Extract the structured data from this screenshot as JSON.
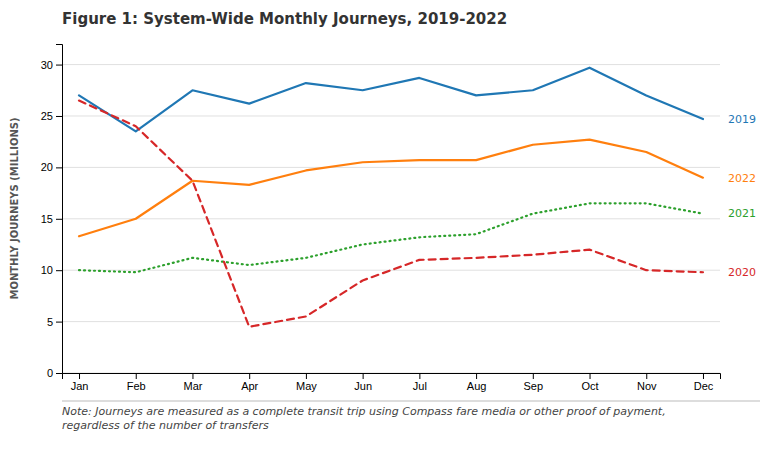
{
  "chart_data": {
    "type": "line",
    "title": "Figure 1: System-Wide Monthly Journeys, 2019-2022",
    "y_label": "MONTHLY JOURNEYS (MILLIONS)",
    "annotations": [
      "Note: Journeys are measured as a complete transit trip using Compass fare media or other proof of payment,\nregardless of the number of transfers"
    ],
    "categories": [
      "Jan",
      "Feb",
      "Mar",
      "Apr",
      "May",
      "Jun",
      "Jul",
      "Aug",
      "Sep",
      "Oct",
      "Nov",
      "Dec"
    ],
    "series": [
      {
        "name": "2019",
        "line_style": "solid",
        "values": [
          27.0,
          23.5,
          27.5,
          26.2,
          28.2,
          27.5,
          28.7,
          27.0,
          27.5,
          29.7,
          27.0,
          24.7
        ]
      },
      {
        "name": "2022",
        "line_style": "solid",
        "values": [
          13.3,
          15.0,
          18.7,
          18.3,
          19.7,
          20.5,
          20.7,
          20.7,
          22.2,
          22.7,
          21.5,
          19.0
        ]
      },
      {
        "name": "2021",
        "line_style": "dotted",
        "values": [
          10.0,
          9.8,
          11.2,
          10.5,
          11.2,
          12.5,
          13.2,
          13.5,
          15.5,
          16.5,
          16.5,
          15.5
        ]
      },
      {
        "name": "2020",
        "line_style": "dashed",
        "values": [
          26.5,
          24.0,
          18.7,
          4.5,
          5.5,
          9.0,
          11.0,
          11.2,
          11.5,
          12.0,
          10.0,
          9.8
        ]
      }
    ],
    "ylim": [
      0,
      32
    ],
    "yticks": [
      0,
      5,
      10,
      15,
      20,
      25,
      30
    ],
    "grid": true
  }
}
